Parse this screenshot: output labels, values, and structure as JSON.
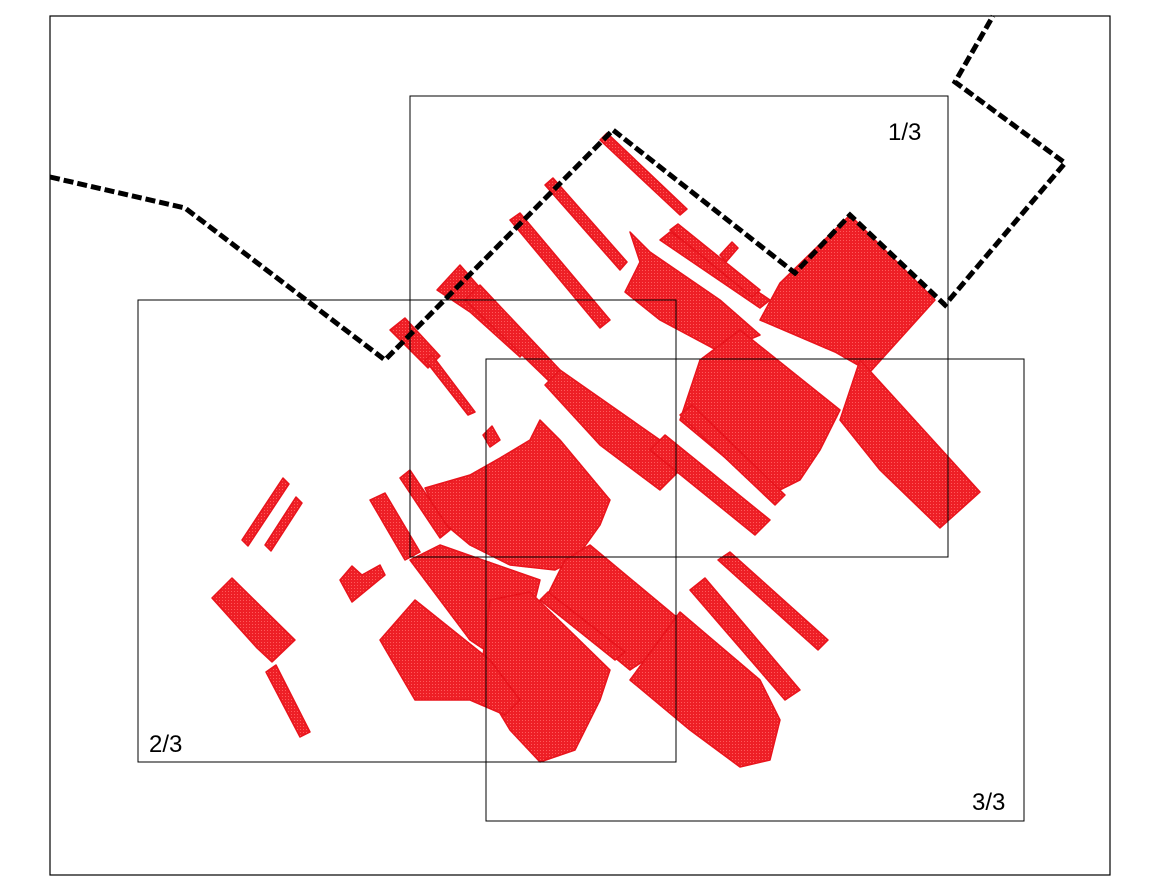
{
  "map": {
    "fill_color": "#e8141c",
    "frame_color": "#000000",
    "boundary_style": "dashed",
    "sheets": [
      {
        "id": "s1",
        "label": "1/3"
      },
      {
        "id": "s2",
        "label": "2/3"
      },
      {
        "id": "s3",
        "label": "3/3"
      }
    ]
  }
}
